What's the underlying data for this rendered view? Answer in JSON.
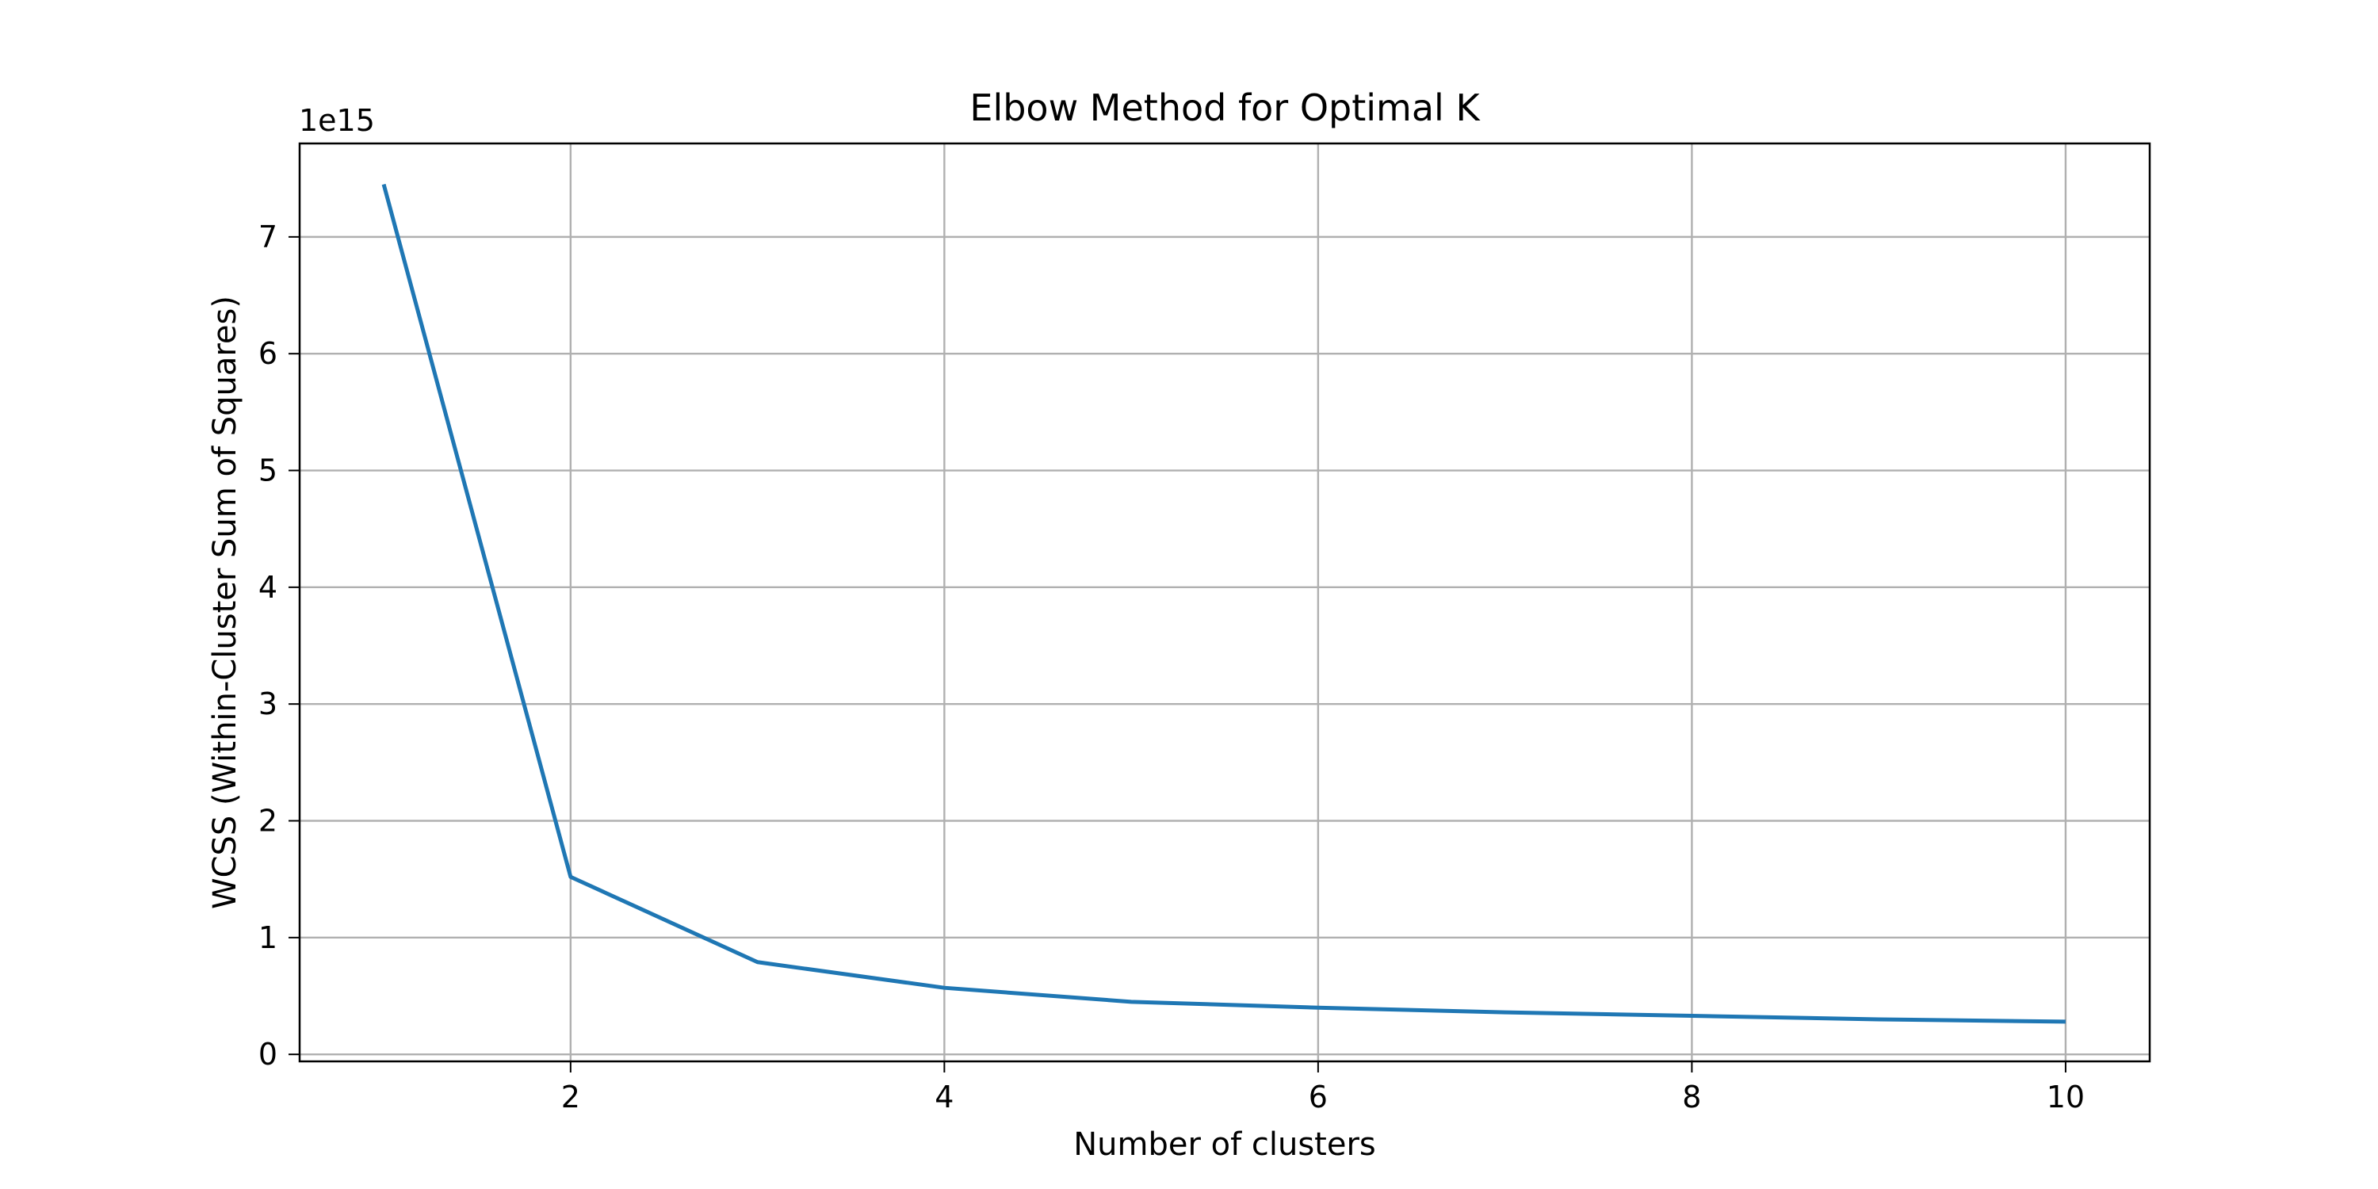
{
  "chart_data": {
    "type": "line",
    "title": "Elbow Method for Optimal K",
    "xlabel": "Number of clusters",
    "ylabel": "WCSS (Within-Cluster Sum of Squares)",
    "y_offset_label": "1e15",
    "x": [
      1,
      2,
      3,
      4,
      5,
      6,
      7,
      8,
      9,
      10
    ],
    "series": [
      {
        "values": [
          7.45,
          1.52,
          0.79,
          0.57,
          0.45,
          0.4,
          0.36,
          0.33,
          0.3,
          0.28
        ]
      }
    ],
    "xlim": [
      0.55,
      10.45
    ],
    "ylim": [
      -0.06,
      7.8
    ],
    "xticks": [
      2,
      4,
      6,
      8,
      10
    ],
    "yticks": [
      0,
      1,
      2,
      3,
      4,
      5,
      6,
      7
    ],
    "grid": true,
    "legend": "none",
    "colors": {
      "series": "#1f77b4"
    }
  }
}
